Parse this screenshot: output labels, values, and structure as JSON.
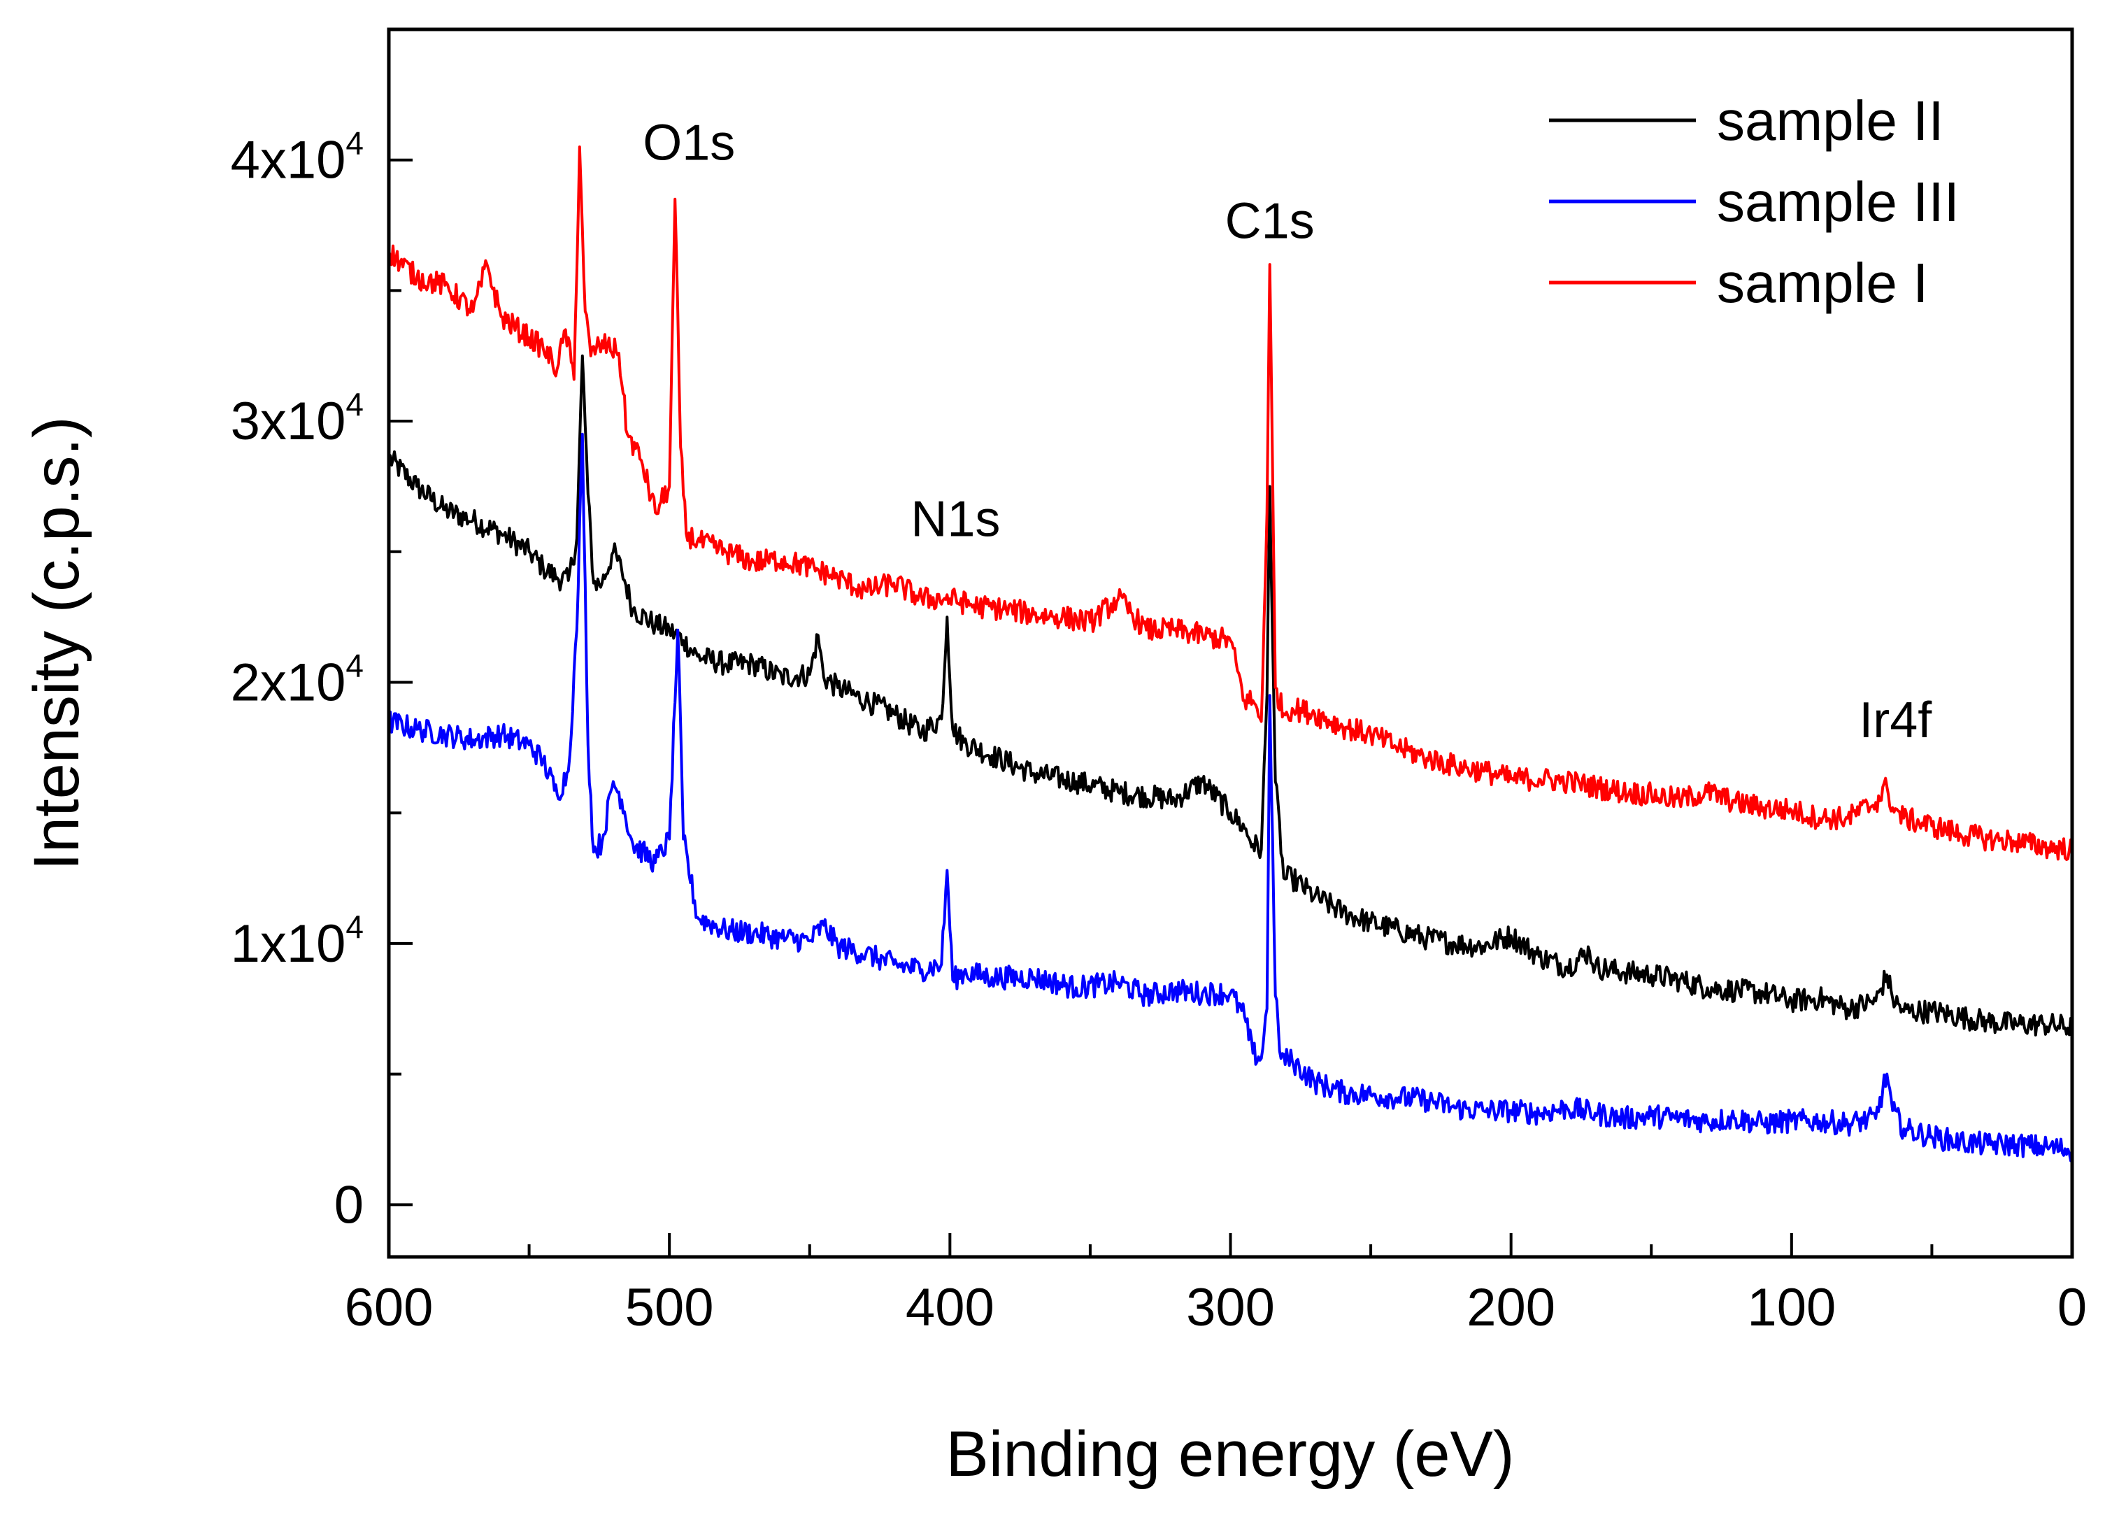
{
  "chart_data": {
    "type": "line",
    "title": "",
    "xlabel": "Binding energy (eV)",
    "ylabel": "Intensity (c.p.s.)",
    "xlim": [
      600,
      0
    ],
    "ylim": [
      -2000,
      45000
    ],
    "x_reversed": true,
    "x_ticks": [
      {
        "value": 600,
        "label": "600"
      },
      {
        "value": 500,
        "label": "500"
      },
      {
        "value": 400,
        "label": "400"
      },
      {
        "value": 300,
        "label": "300"
      },
      {
        "value": 200,
        "label": "200"
      },
      {
        "value": 100,
        "label": "100"
      },
      {
        "value": 0,
        "label": "0"
      }
    ],
    "y_ticks": [
      {
        "value": 0,
        "mantissa": "0",
        "exponent": ""
      },
      {
        "value": 10000,
        "mantissa": "1x10",
        "exponent": "4"
      },
      {
        "value": 20000,
        "mantissa": "2x10",
        "exponent": "4"
      },
      {
        "value": 30000,
        "mantissa": "3x10",
        "exponent": "4"
      },
      {
        "value": 40000,
        "mantissa": "4x10",
        "exponent": "4"
      }
    ],
    "legend": {
      "position": "top-right"
    },
    "series": [
      {
        "name": "sample II",
        "color": "#000000",
        "x": [
          600,
          590,
          580,
          570,
          560,
          550,
          545,
          540,
          536,
          533,
          531,
          529,
          527,
          524,
          520,
          517,
          513,
          505,
          500,
          495,
          490,
          480,
          470,
          460,
          450,
          447,
          445,
          440,
          430,
          420,
          410,
          403,
          401,
          399,
          395,
          385,
          370,
          355,
          340,
          320,
          310,
          300,
          295,
          292,
          289,
          287,
          286,
          284,
          281,
          278,
          270,
          260,
          250,
          240,
          230,
          220,
          210,
          200,
          190,
          180,
          172,
          170,
          160,
          150,
          140,
          130,
          120,
          110,
          100,
          90,
          80,
          70,
          66,
          64,
          60,
          50,
          40,
          30,
          20,
          10,
          0
        ],
        "y": [
          28600,
          27500,
          26600,
          26200,
          25700,
          25000,
          24400,
          24000,
          23900,
          25500,
          32500,
          27200,
          23800,
          23800,
          25000,
          24300,
          22800,
          22200,
          22000,
          21600,
          21000,
          20700,
          20700,
          20200,
          20300,
          21800,
          20200,
          19800,
          19300,
          18800,
          18100,
          18600,
          22500,
          18200,
          17700,
          17200,
          16500,
          16200,
          15800,
          15500,
          16200,
          15000,
          14400,
          13800,
          13600,
          19500,
          27500,
          16200,
          12500,
          12500,
          11800,
          11200,
          10800,
          10500,
          10200,
          10000,
          9900,
          10300,
          9500,
          9100,
          9700,
          9100,
          8900,
          8800,
          8600,
          8300,
          8200,
          8100,
          7800,
          7900,
          7500,
          7800,
          8800,
          7900,
          7400,
          7400,
          7200,
          7000,
          6900,
          6900,
          6800
        ]
      },
      {
        "name": "sample III",
        "color": "#0000ff",
        "x": [
          600,
          590,
          580,
          570,
          560,
          550,
          545,
          540,
          536,
          533,
          531,
          529,
          527,
          524,
          520,
          517,
          513,
          505,
          500,
          497,
          495,
          490,
          480,
          470,
          460,
          450,
          445,
          440,
          430,
          420,
          410,
          403,
          401,
          399,
          395,
          385,
          370,
          355,
          340,
          330,
          320,
          310,
          300,
          295,
          292,
          289,
          287,
          286,
          284,
          282,
          278,
          270,
          260,
          250,
          240,
          230,
          220,
          210,
          200,
          190,
          180,
          170,
          160,
          150,
          140,
          130,
          120,
          110,
          100,
          90,
          80,
          70,
          66,
          64,
          60,
          50,
          40,
          30,
          20,
          10,
          0
        ],
        "y": [
          18500,
          18200,
          18000,
          17800,
          18000,
          17600,
          17000,
          15700,
          16600,
          22000,
          29500,
          17600,
          13500,
          13900,
          16200,
          15500,
          13800,
          13100,
          14000,
          22000,
          14000,
          11000,
          10500,
          10400,
          10200,
          10100,
          10700,
          9900,
          9600,
          9200,
          9000,
          9200,
          12800,
          8600,
          8900,
          8700,
          8700,
          8300,
          8500,
          8000,
          8200,
          8100,
          8100,
          7200,
          5800,
          5600,
          7500,
          19500,
          8000,
          5600,
          5500,
          4700,
          4300,
          4200,
          4100,
          4000,
          3700,
          3600,
          3600,
          3500,
          3700,
          3500,
          3300,
          3400,
          3300,
          3200,
          3300,
          3100,
          3200,
          3200,
          3100,
          3300,
          5000,
          3600,
          2900,
          2600,
          2400,
          2300,
          2300,
          2200,
          2100
        ]
      },
      {
        "name": "sample I",
        "color": "#ff0000",
        "x": [
          600,
          590,
          580,
          570,
          565,
          560,
          550,
          545,
          540,
          537,
          534,
          532,
          530,
          528,
          525,
          522,
          518,
          515,
          510,
          505,
          500,
          498,
          496,
          494,
          490,
          480,
          470,
          460,
          450,
          440,
          430,
          420,
          410,
          400,
          390,
          380,
          370,
          360,
          350,
          340,
          330,
          320,
          310,
          300,
          295,
          292,
          289,
          287,
          286,
          284,
          281,
          278,
          270,
          260,
          250,
          240,
          230,
          220,
          210,
          200,
          190,
          180,
          170,
          160,
          150,
          140,
          130,
          120,
          110,
          100,
          90,
          80,
          70,
          66,
          64,
          60,
          50,
          40,
          30,
          20,
          10,
          0
        ],
        "y": [
          36500,
          35500,
          35200,
          34200,
          36000,
          34000,
          33200,
          32800,
          32000,
          33500,
          31600,
          40500,
          34200,
          32500,
          32900,
          32900,
          32600,
          29500,
          28500,
          26500,
          27500,
          38500,
          29000,
          25700,
          25400,
          25000,
          24600,
          24700,
          24400,
          24000,
          23500,
          23800,
          23200,
          23200,
          22900,
          22800,
          22600,
          22500,
          22300,
          23200,
          22000,
          22000,
          21800,
          21600,
          19300,
          19300,
          18500,
          26500,
          36000,
          19800,
          18800,
          19000,
          18800,
          18300,
          18000,
          17500,
          17100,
          16800,
          16600,
          16300,
          16300,
          16200,
          16000,
          15800,
          15700,
          15500,
          15800,
          15400,
          15200,
          15100,
          14800,
          14800,
          15400,
          16000,
          15200,
          14800,
          14500,
          14200,
          14000,
          13900,
          13700,
          13600
        ]
      }
    ],
    "annotations": [
      {
        "text": "O1s",
        "x": 493,
        "y": 40000
      },
      {
        "text": "N1s",
        "x": 398,
        "y": 25600
      },
      {
        "text": "C1s",
        "x": 286,
        "y": 37000
      },
      {
        "text": "Ir4f",
        "x": 63,
        "y": 17900
      }
    ]
  }
}
